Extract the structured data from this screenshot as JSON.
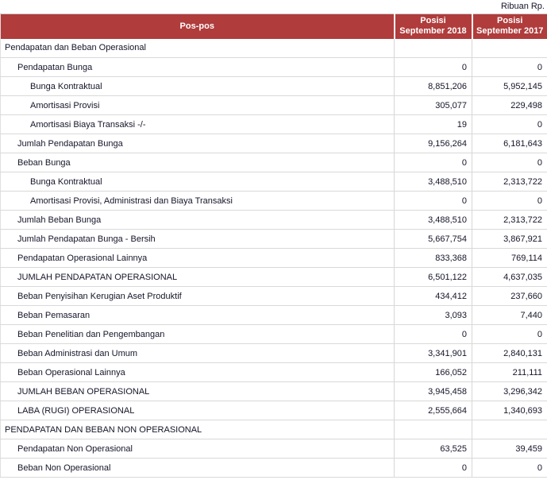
{
  "page": {
    "unit_label": "Ribuan Rp."
  },
  "colors": {
    "header_bg": "#B03C3C",
    "header_text": "#FFFFFF",
    "grid_line": "#D6D6D6",
    "body_text": "#15152A"
  },
  "table": {
    "columns": [
      {
        "label": "Pos-pos"
      },
      {
        "label": "Posisi September 2018"
      },
      {
        "label": "Posisi September 2017"
      }
    ],
    "rows": [
      {
        "label": "Pendapatan dan Beban Operasional",
        "indent": 0,
        "v2018": "",
        "v2017": ""
      },
      {
        "label": "Pendapatan Bunga",
        "indent": 1,
        "v2018": "0",
        "v2017": "0"
      },
      {
        "label": "Bunga Kontraktual",
        "indent": 2,
        "v2018": "8,851,206",
        "v2017": "5,952,145"
      },
      {
        "label": "Amortisasi Provisi",
        "indent": 2,
        "v2018": "305,077",
        "v2017": "229,498"
      },
      {
        "label": "Amortisasi Biaya Transaksi -/-",
        "indent": 2,
        "v2018": "19",
        "v2017": "0"
      },
      {
        "label": "Jumlah Pendapatan Bunga",
        "indent": 1,
        "v2018": "9,156,264",
        "v2017": "6,181,643"
      },
      {
        "label": "Beban Bunga",
        "indent": 1,
        "v2018": "0",
        "v2017": "0"
      },
      {
        "label": "Bunga Kontraktual",
        "indent": 2,
        "v2018": "3,488,510",
        "v2017": "2,313,722"
      },
      {
        "label": "Amortisasi Provisi, Administrasi dan Biaya Transaksi",
        "indent": 2,
        "v2018": "0",
        "v2017": "0"
      },
      {
        "label": "Jumlah Beban Bunga",
        "indent": 1,
        "v2018": "3,488,510",
        "v2017": "2,313,722"
      },
      {
        "label": "Jumlah Pendapatan Bunga - Bersih",
        "indent": 1,
        "v2018": "5,667,754",
        "v2017": "3,867,921"
      },
      {
        "label": "Pendapatan Operasional Lainnya",
        "indent": 1,
        "v2018": "833,368",
        "v2017": "769,114"
      },
      {
        "label": "JUMLAH PENDAPATAN OPERASIONAL",
        "indent": 1,
        "v2018": "6,501,122",
        "v2017": "4,637,035"
      },
      {
        "label": "Beban Penyisihan Kerugian Aset Produktif",
        "indent": 1,
        "v2018": "434,412",
        "v2017": "237,660"
      },
      {
        "label": "Beban Pemasaran",
        "indent": 1,
        "v2018": "3,093",
        "v2017": "7,440"
      },
      {
        "label": "Beban Penelitian dan Pengembangan",
        "indent": 1,
        "v2018": "0",
        "v2017": "0"
      },
      {
        "label": "Beban Administrasi dan Umum",
        "indent": 1,
        "v2018": "3,341,901",
        "v2017": "2,840,131"
      },
      {
        "label": "Beban Operasional Lainnya",
        "indent": 1,
        "v2018": "166,052",
        "v2017": "211,111"
      },
      {
        "label": "JUMLAH BEBAN OPERASIONAL",
        "indent": 1,
        "v2018": "3,945,458",
        "v2017": "3,296,342"
      },
      {
        "label": "LABA (RUGI) OPERASIONAL",
        "indent": 1,
        "v2018": "2,555,664",
        "v2017": "1,340,693"
      },
      {
        "label": "PENDAPATAN DAN BEBAN NON OPERASIONAL",
        "indent": 0,
        "v2018": "",
        "v2017": ""
      },
      {
        "label": "Pendapatan Non Operasional",
        "indent": 1,
        "v2018": "63,525",
        "v2017": "39,459"
      },
      {
        "label": "Beban Non Operasional",
        "indent": 1,
        "v2018": "0",
        "v2017": "0"
      }
    ]
  }
}
